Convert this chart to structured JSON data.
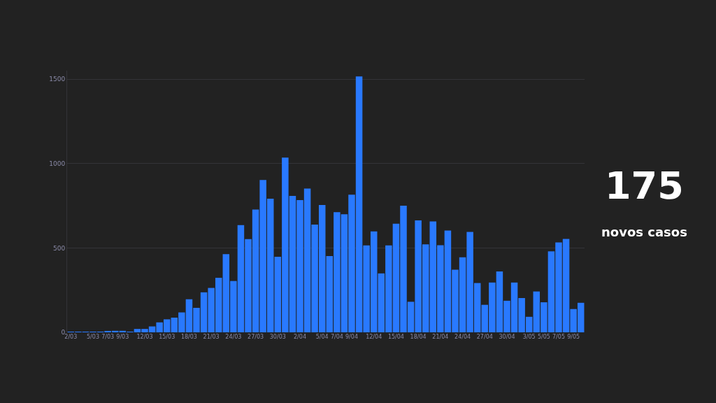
{
  "chart_data": {
    "type": "bar",
    "categories": [
      "2/03",
      null,
      null,
      "5/03",
      null,
      "7/03",
      null,
      "9/03",
      null,
      null,
      "12/03",
      null,
      null,
      "15/03",
      null,
      null,
      "18/03",
      null,
      null,
      "21/03",
      null,
      null,
      "24/03",
      null,
      null,
      "27/03",
      null,
      null,
      "30/03",
      null,
      null,
      "2/04",
      null,
      null,
      "5/04",
      null,
      "7/04",
      null,
      "9/04",
      null,
      null,
      "12/04",
      null,
      null,
      "15/04",
      null,
      null,
      "18/04",
      null,
      null,
      "21/04",
      null,
      null,
      "24/04",
      null,
      null,
      "27/04",
      null,
      null,
      "30/04",
      null,
      null,
      "3/05",
      null,
      "5/05",
      null,
      "7/05",
      null,
      "9/05",
      null
    ],
    "values": [
      2,
      2,
      1,
      4,
      4,
      8,
      9,
      9,
      3,
      20,
      20,
      35,
      59,
      77,
      87,
      118,
      196,
      145,
      237,
      263,
      323,
      463,
      304,
      635,
      552,
      727,
      902,
      792,
      448,
      1035,
      808,
      783,
      852,
      638,
      754,
      452,
      712,
      699,
      815,
      1516,
      515,
      598,
      349,
      515,
      643,
      750,
      181,
      663,
      521,
      657,
      516,
      603,
      371,
      444,
      595,
      292,
      163,
      295,
      361,
      187,
      295,
      203,
      92,
      242,
      178,
      480,
      533,
      553,
      138,
      175
    ],
    "color": "#2979ff",
    "ylim": [
      0,
      1550
    ],
    "yticks": [
      0,
      500,
      1000,
      1500
    ],
    "grid": "y",
    "annotations": [
      "175",
      "novos casos"
    ]
  }
}
